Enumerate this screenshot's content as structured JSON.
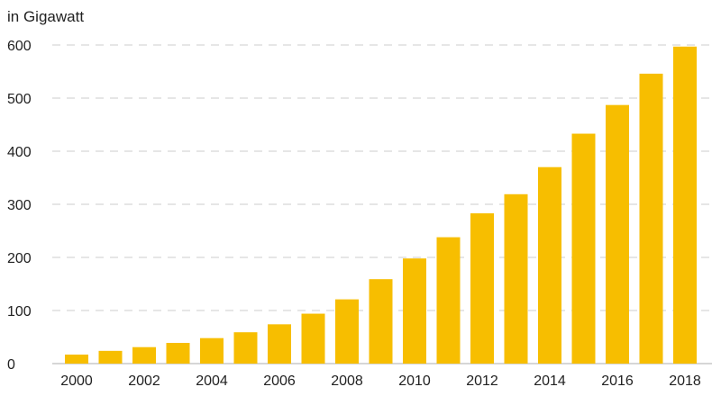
{
  "chart_data": {
    "type": "bar",
    "ylabel": "in Gigawatt",
    "ylim": [
      0,
      600
    ],
    "yticks": [
      0,
      100,
      200,
      300,
      400,
      500,
      600
    ],
    "xticks": [
      "2000",
      "2002",
      "2004",
      "2006",
      "2008",
      "2010",
      "2012",
      "2014",
      "2016",
      "2018"
    ],
    "grid": true,
    "bar_color": "#F7BE00",
    "categories": [
      "2000",
      "2001",
      "2002",
      "2003",
      "2004",
      "2005",
      "2006",
      "2007",
      "2008",
      "2009",
      "2010",
      "2011",
      "2012",
      "2013",
      "2014",
      "2015",
      "2016",
      "2017",
      "2018"
    ],
    "values": [
      17,
      24,
      31,
      39,
      48,
      59,
      74,
      94,
      121,
      159,
      198,
      238,
      283,
      319,
      370,
      433,
      487,
      546,
      597
    ]
  }
}
